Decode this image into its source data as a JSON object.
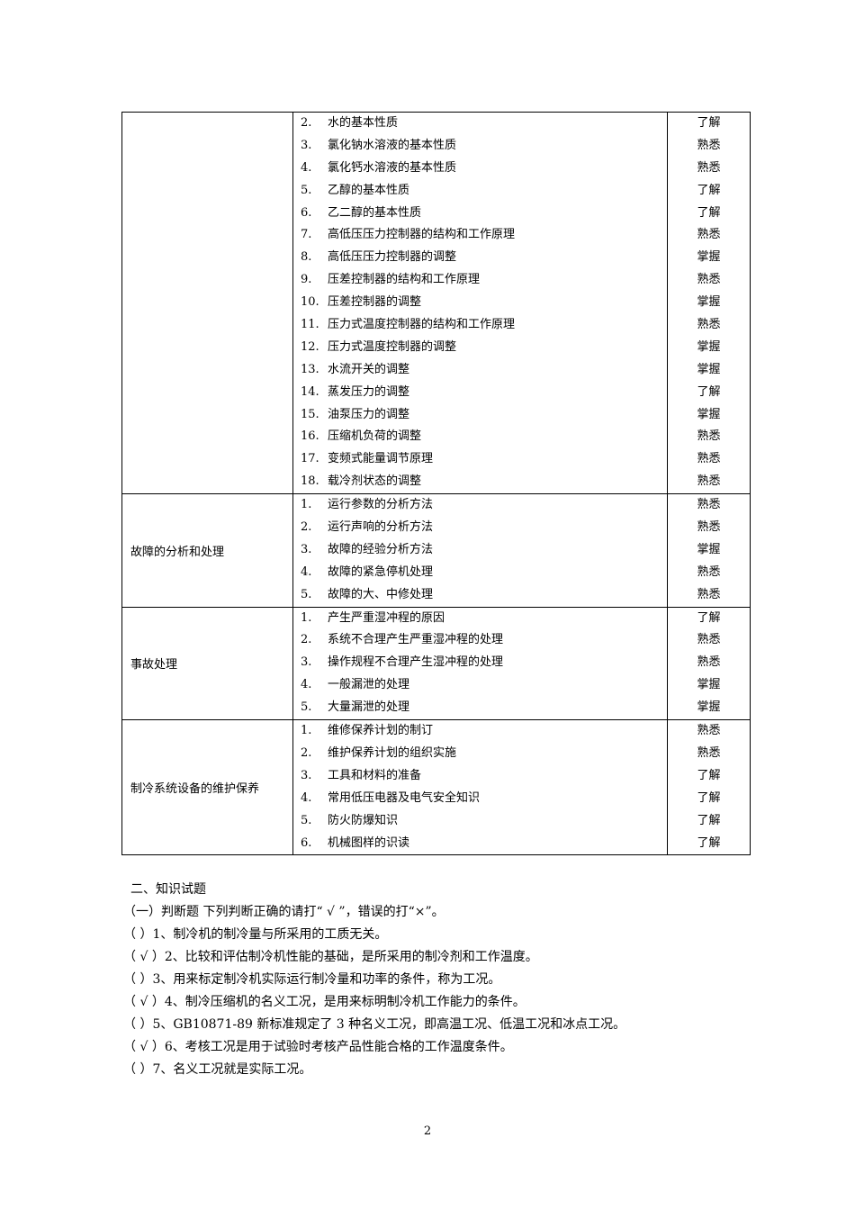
{
  "table": [
    {
      "category": "",
      "items": [
        {
          "n": "2.",
          "t": "水的基本性质",
          "l": "了解"
        },
        {
          "n": "3.",
          "t": "氯化钠水溶液的基本性质",
          "l": "熟悉"
        },
        {
          "n": "4.",
          "t": "氯化钙水溶液的基本性质",
          "l": "熟悉"
        },
        {
          "n": "5.",
          "t": "乙醇的基本性质",
          "l": "了解"
        },
        {
          "n": "6.",
          "t": "乙二醇的基本性质",
          "l": "了解"
        },
        {
          "n": "7.",
          "t": "高低压压力控制器的结构和工作原理",
          "l": "熟悉"
        },
        {
          "n": "8.",
          "t": "高低压压力控制器的调整",
          "l": "掌握"
        },
        {
          "n": "9.",
          "t": "压差控制器的结构和工作原理",
          "l": "熟悉"
        },
        {
          "n": "10.",
          "t": "压差控制器的调整",
          "l": "掌握"
        },
        {
          "n": "11.",
          "t": "压力式温度控制器的结构和工作原理",
          "l": "熟悉"
        },
        {
          "n": "12.",
          "t": "压力式温度控制器的调整",
          "l": "掌握"
        },
        {
          "n": "13.",
          "t": "水流开关的调整",
          "l": "掌握"
        },
        {
          "n": "14.",
          "t": "蒸发压力的调整",
          "l": "了解"
        },
        {
          "n": "15.",
          "t": "油泵压力的调整",
          "l": "掌握"
        },
        {
          "n": "16.",
          "t": "压缩机负荷的调整",
          "l": "熟悉"
        },
        {
          "n": "17.",
          "t": "变频式能量调节原理",
          "l": "熟悉"
        },
        {
          "n": "18.",
          "t": "载冷剂状态的调整",
          "l": "熟悉"
        }
      ]
    },
    {
      "category": "故障的分析和处理",
      "items": [
        {
          "n": "1.",
          "t": "运行参数的分析方法",
          "l": "熟悉"
        },
        {
          "n": "2.",
          "t": "运行声响的分析方法",
          "l": "熟悉"
        },
        {
          "n": "3.",
          "t": "故障的经验分析方法",
          "l": "掌握"
        },
        {
          "n": "4.",
          "t": "故障的紧急停机处理",
          "l": "熟悉"
        },
        {
          "n": "5.",
          "t": "故障的大、中修处理",
          "l": "熟悉"
        }
      ]
    },
    {
      "category": "事故处理",
      "items": [
        {
          "n": "1.",
          "t": "产生严重湿冲程的原因",
          "l": "了解"
        },
        {
          "n": "2.",
          "t": "系统不合理产生严重湿冲程的处理",
          "l": "熟悉"
        },
        {
          "n": "3.",
          "t": "操作规程不合理产生湿冲程的处理",
          "l": "熟悉"
        },
        {
          "n": "4.",
          "t": "一般漏泄的处理",
          "l": "掌握"
        },
        {
          "n": "5.",
          "t": "大量漏泄的处理",
          "l": "掌握"
        }
      ]
    },
    {
      "category": "制冷系统设备的维护保养",
      "items": [
        {
          "n": "1.",
          "t": "维修保养计划的制订",
          "l": "熟悉"
        },
        {
          "n": "2.",
          "t": "维护保养计划的组织实施",
          "l": "熟悉"
        },
        {
          "n": "3.",
          "t": "工具和材料的准备",
          "l": "了解"
        },
        {
          "n": "4.",
          "t": "常用低压电器及电气安全知识",
          "l": "了解"
        },
        {
          "n": "5.",
          "t": "防火防爆知识",
          "l": "了解"
        },
        {
          "n": "6.",
          "t": "机械图样的识读",
          "l": "了解"
        }
      ]
    }
  ],
  "section_title": "二、知识试题",
  "lines": [
    "（一）判断题  下列判断正确的请打“ √ ”，错误的打“×”。",
    "（    ）1、制冷机的制冷量与所采用的工质无关。",
    "（ √ ）2、比较和评估制冷机性能的基础，是所采用的制冷剂和工作温度。",
    "（    ）3、用来标定制冷机实际运行制冷量和功率的条件，称为工况。",
    "（  √ ）4、制冷压缩机的名义工况，是用来标明制冷机工作能力的条件。",
    "（    ）5、GB10871-89 新标准规定了 3 种名义工况，即高温工况、低温工况和冰点工况。",
    "（ √  ）6、考核工况是用于试验时考核产品性能合格的工作温度条件。",
    "（    ）7、名义工况就是实际工况。"
  ],
  "page_number": "2"
}
